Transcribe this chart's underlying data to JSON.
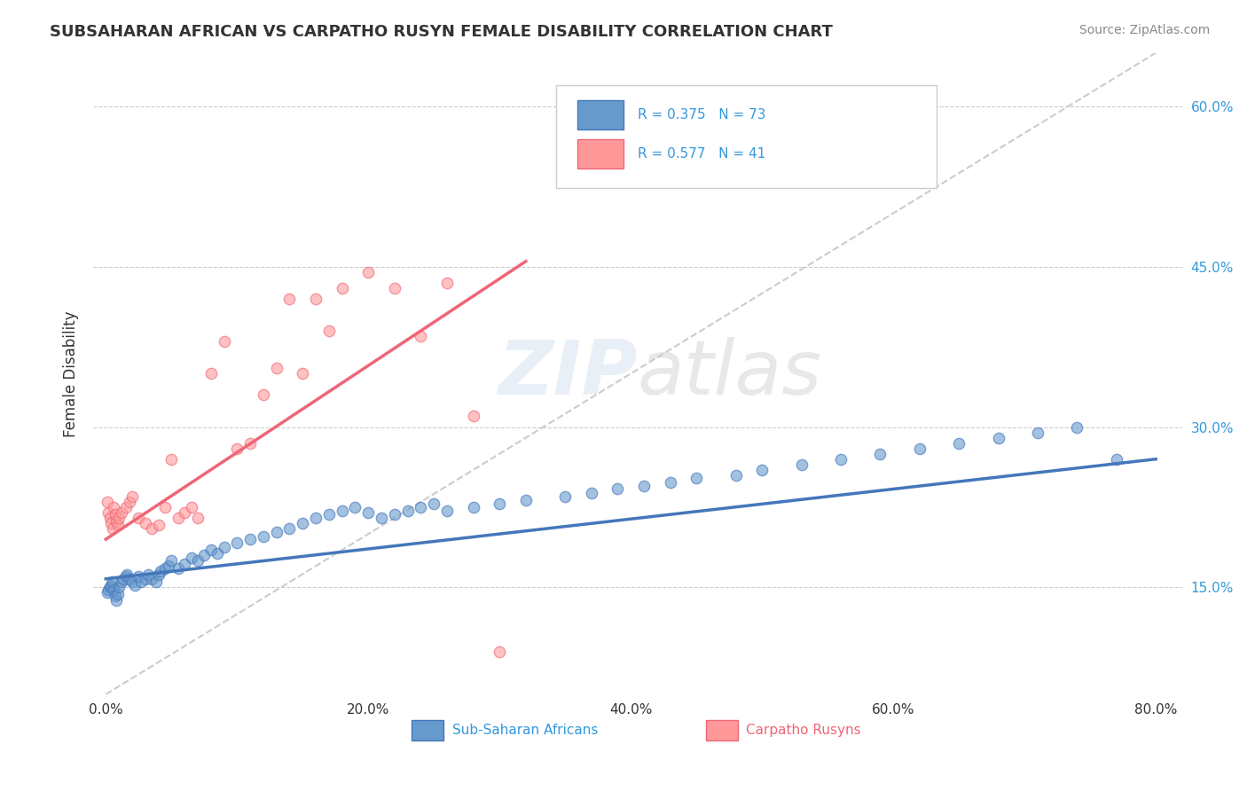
{
  "title": "SUBSAHARAN AFRICAN VS CARPATHO RUSYN FEMALE DISABILITY CORRELATION CHART",
  "source": "Source: ZipAtlas.com",
  "ylabel": "Female Disability",
  "xtick_labels": [
    "0.0%",
    "20.0%",
    "40.0%",
    "60.0%",
    "80.0%"
  ],
  "xtick_values": [
    0.0,
    0.2,
    0.4,
    0.6,
    0.8
  ],
  "ytick_labels_right": [
    "15.0%",
    "30.0%",
    "45.0%",
    "60.0%"
  ],
  "ytick_values_right": [
    0.15,
    0.3,
    0.45,
    0.6
  ],
  "ylim": [
    0.05,
    0.65
  ],
  "xlim": [
    -0.01,
    0.82
  ],
  "legend_r1": "R = 0.375",
  "legend_n1": "N = 73",
  "legend_r2": "R = 0.577",
  "legend_n2": "N = 41",
  "legend_label1": "Sub-Saharan Africans",
  "legend_label2": "Carpatho Rusyns",
  "blue_color": "#6699CC",
  "pink_color": "#FF9999",
  "blue_line_color": "#4477BB",
  "pink_line_color": "#EE6677",
  "diag_line_color": "#CCCCCC",
  "watermark_zip": "ZIP",
  "watermark_atlas": "atlas",
  "background_color": "#FFFFFF",
  "blue_scatter_x": [
    0.001,
    0.002,
    0.003,
    0.004,
    0.005,
    0.006,
    0.007,
    0.008,
    0.009,
    0.01,
    0.012,
    0.013,
    0.015,
    0.016,
    0.018,
    0.02,
    0.022,
    0.025,
    0.027,
    0.03,
    0.032,
    0.035,
    0.038,
    0.04,
    0.042,
    0.045,
    0.048,
    0.05,
    0.055,
    0.06,
    0.065,
    0.07,
    0.075,
    0.08,
    0.085,
    0.09,
    0.1,
    0.11,
    0.12,
    0.13,
    0.14,
    0.15,
    0.16,
    0.17,
    0.18,
    0.19,
    0.2,
    0.21,
    0.22,
    0.23,
    0.24,
    0.25,
    0.26,
    0.28,
    0.3,
    0.32,
    0.35,
    0.37,
    0.39,
    0.41,
    0.43,
    0.45,
    0.48,
    0.5,
    0.53,
    0.56,
    0.59,
    0.62,
    0.65,
    0.68,
    0.71,
    0.74,
    0.77
  ],
  "blue_scatter_y": [
    0.145,
    0.148,
    0.15,
    0.152,
    0.155,
    0.148,
    0.142,
    0.138,
    0.144,
    0.15,
    0.155,
    0.158,
    0.16,
    0.162,
    0.158,
    0.155,
    0.152,
    0.16,
    0.155,
    0.158,
    0.162,
    0.158,
    0.155,
    0.162,
    0.165,
    0.168,
    0.17,
    0.175,
    0.168,
    0.172,
    0.178,
    0.175,
    0.18,
    0.185,
    0.182,
    0.188,
    0.192,
    0.195,
    0.198,
    0.202,
    0.205,
    0.21,
    0.215,
    0.218,
    0.222,
    0.225,
    0.22,
    0.215,
    0.218,
    0.222,
    0.225,
    0.228,
    0.222,
    0.225,
    0.228,
    0.232,
    0.235,
    0.238,
    0.242,
    0.245,
    0.248,
    0.252,
    0.255,
    0.26,
    0.265,
    0.27,
    0.275,
    0.28,
    0.285,
    0.29,
    0.295,
    0.3,
    0.27
  ],
  "blue_line_x": [
    0.0,
    0.8
  ],
  "blue_line_y": [
    0.158,
    0.27
  ],
  "pink_scatter_x": [
    0.001,
    0.002,
    0.003,
    0.004,
    0.005,
    0.006,
    0.007,
    0.008,
    0.009,
    0.01,
    0.012,
    0.015,
    0.018,
    0.02,
    0.025,
    0.03,
    0.035,
    0.04,
    0.045,
    0.05,
    0.055,
    0.06,
    0.065,
    0.07,
    0.08,
    0.09,
    0.1,
    0.11,
    0.12,
    0.13,
    0.14,
    0.15,
    0.16,
    0.17,
    0.18,
    0.2,
    0.22,
    0.24,
    0.26,
    0.28,
    0.3
  ],
  "pink_scatter_y": [
    0.23,
    0.22,
    0.215,
    0.21,
    0.205,
    0.225,
    0.218,
    0.212,
    0.208,
    0.215,
    0.22,
    0.225,
    0.23,
    0.235,
    0.215,
    0.21,
    0.205,
    0.208,
    0.225,
    0.27,
    0.215,
    0.22,
    0.225,
    0.215,
    0.35,
    0.38,
    0.28,
    0.285,
    0.33,
    0.355,
    0.42,
    0.35,
    0.42,
    0.39,
    0.43,
    0.445,
    0.43,
    0.385,
    0.435,
    0.31,
    0.09
  ],
  "pink_line_x": [
    0.0,
    0.32
  ],
  "pink_line_y": [
    0.195,
    0.455
  ],
  "diag_line_x": [
    0.0,
    0.8
  ],
  "diag_line_y": [
    0.05,
    0.65
  ]
}
